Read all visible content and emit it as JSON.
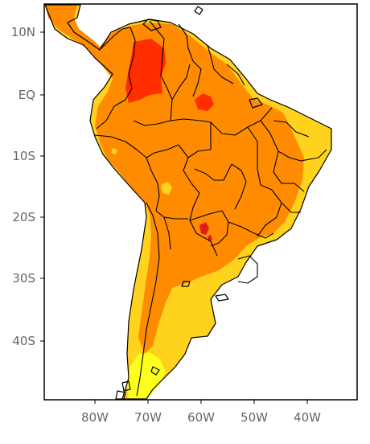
{
  "map": {
    "y_axis_labels": [
      "10N",
      "EQ",
      "10S",
      "20S",
      "30S",
      "40S"
    ],
    "x_axis_labels": [
      "80W",
      "70W",
      "60W",
      "50W",
      "40W"
    ],
    "colors": {
      "light_yellow": "#ffff1e",
      "yellow": "#ffd21e",
      "orange": "#ff8c00",
      "dark_orange": "#ff2d00",
      "red": "#dd1c1c",
      "ocean": "#ffffff",
      "border": "#000000"
    }
  }
}
